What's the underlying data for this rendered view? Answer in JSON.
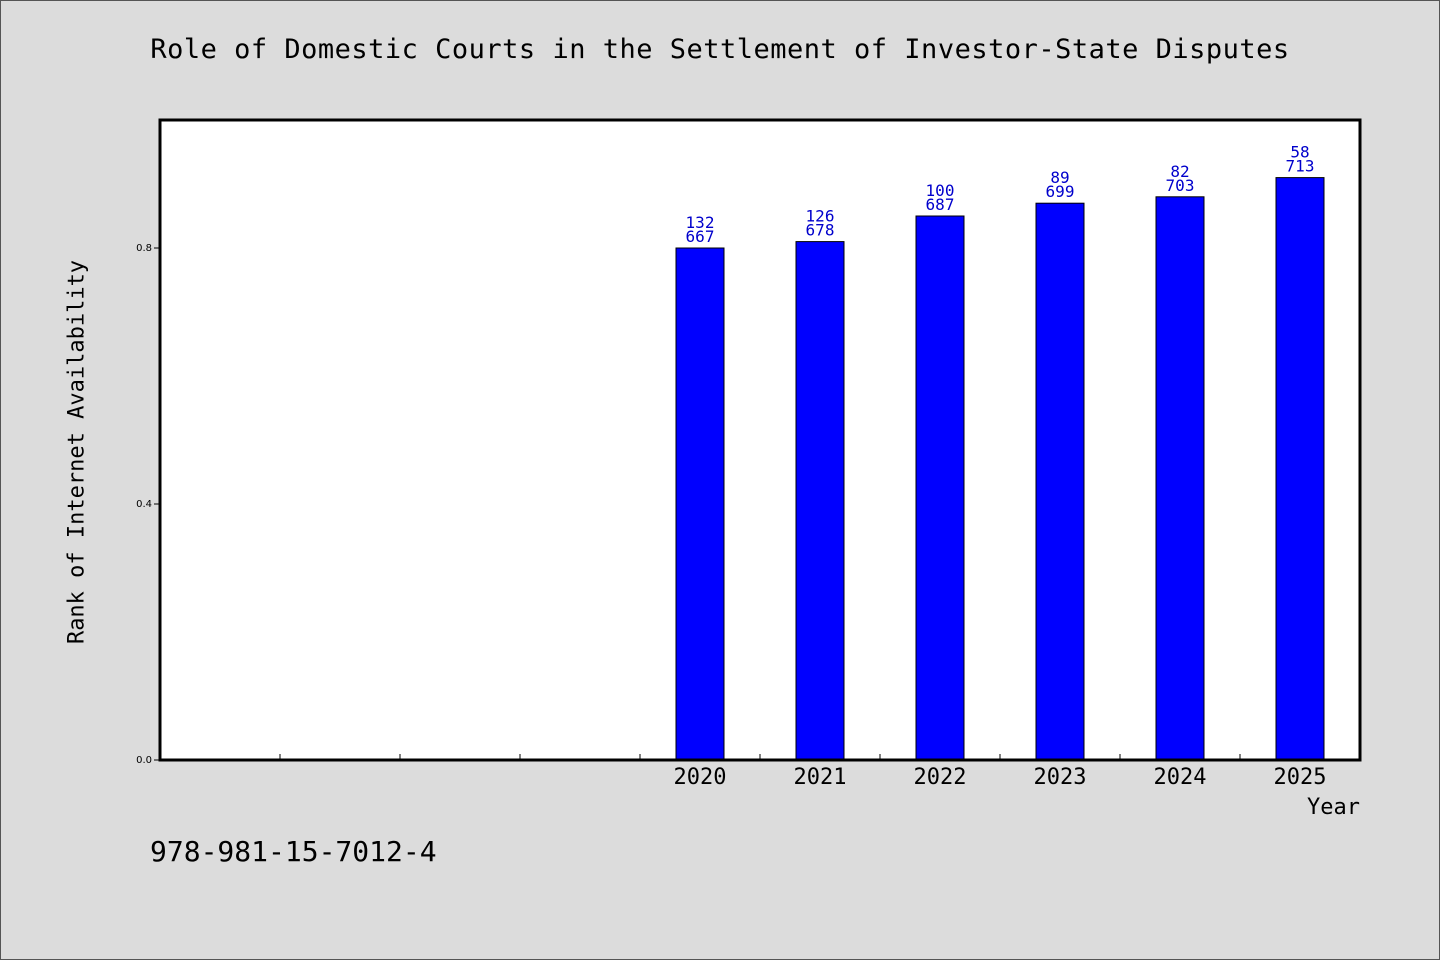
{
  "footnote": "978-981-15-7012-4",
  "chart_data": {
    "type": "bar",
    "title": "Role of Domestic Courts in the Settlement of Investor-State Disputes",
    "xlabel": "Year",
    "ylabel": "Rank of Internet Availability",
    "categories": [
      "",
      "",
      "",
      "",
      "2020",
      "2021",
      "2022",
      "2023",
      "2024",
      "2025"
    ],
    "values": [
      null,
      null,
      null,
      null,
      0.8,
      0.81,
      0.85,
      0.87,
      0.88,
      0.91
    ],
    "label_top": [
      null,
      null,
      null,
      null,
      "132",
      "126",
      "100",
      "89",
      "82",
      "58"
    ],
    "label_bottom": [
      null,
      null,
      null,
      null,
      "667",
      "678",
      "687",
      "699",
      "703",
      "713"
    ],
    "yticks": [
      0.0,
      0.4,
      0.8
    ],
    "ytick_labels": [
      "0.0",
      "0.4",
      "0.8"
    ],
    "ylim": [
      0,
      1.0
    ],
    "grid": false,
    "bar_color": "#0000ff",
    "label_color": "#0000cc",
    "background_color": "#dcdcdc",
    "plot_background": "#ffffff"
  }
}
